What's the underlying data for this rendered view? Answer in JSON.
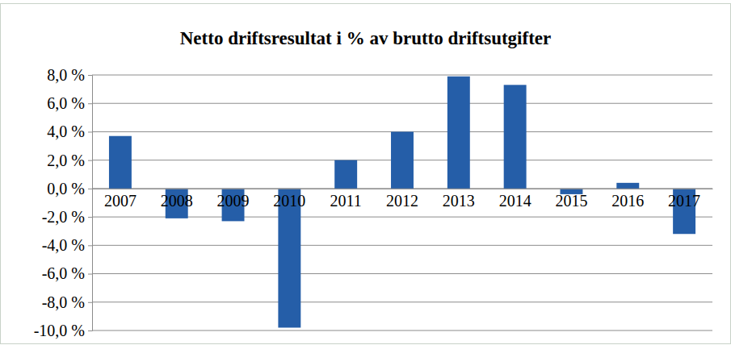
{
  "chart_data": {
    "type": "bar",
    "title": "Netto driftsresultat i % av brutto driftsutgifter",
    "categories": [
      "2007",
      "2008",
      "2009",
      "2010",
      "2011",
      "2012",
      "2013",
      "2014",
      "2015",
      "2016",
      "2017"
    ],
    "values": [
      3.7,
      -2.1,
      -2.3,
      -9.8,
      2.0,
      4.0,
      7.9,
      7.3,
      -0.4,
      0.4,
      -3.2
    ],
    "color": "#255ea8",
    "ylim": [
      -10,
      8
    ],
    "yticks": [
      {
        "value": -10,
        "label": "-10,0 %"
      },
      {
        "value": -8,
        "label": "-8,0 %"
      },
      {
        "value": -6,
        "label": "-6,0 %"
      },
      {
        "value": -4,
        "label": "-4,0 %"
      },
      {
        "value": -2,
        "label": "-2,0 %"
      },
      {
        "value": 0,
        "label": "0,0 %"
      },
      {
        "value": 2,
        "label": "2,0 %"
      },
      {
        "value": 4,
        "label": "4,0 %"
      },
      {
        "value": 6,
        "label": "6,0 %"
      },
      {
        "value": 8,
        "label": "8,0 %"
      }
    ],
    "grid": true
  }
}
